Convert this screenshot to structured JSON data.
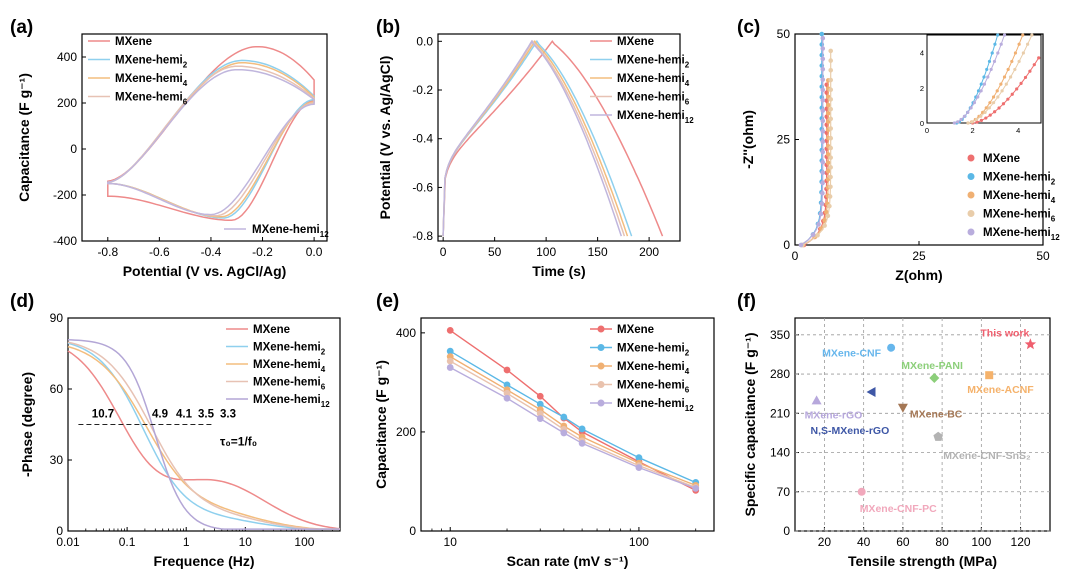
{
  "chart_data": [
    {
      "panel": "(a)",
      "type": "line",
      "xlabel": "Potential (V vs. AgCl/Ag)",
      "ylabel": "Capacitance (F g⁻¹)",
      "xlim": [
        -0.9,
        0.05
      ],
      "ylim": [
        -400,
        500
      ],
      "xticks": [
        -0.8,
        -0.6,
        -0.4,
        -0.2,
        0.0
      ],
      "yticks": [
        -400,
        -200,
        0,
        200,
        400
      ],
      "xtick_labels": [
        "-0.8",
        "-0.6",
        "-0.4",
        "-0.2",
        "0.0"
      ],
      "ytick_labels": [
        "-400",
        "-200",
        "0",
        "200",
        "400"
      ],
      "legend": {
        "position": "top-left",
        "inline_label": "MXene-hemi",
        "inline_sub": "12"
      },
      "series": [
        {
          "name": "MXene",
          "sub": "",
          "color": "#ee8a8a",
          "top_peak": [
            -0.22,
            445
          ],
          "bottom_peak": [
            -0.32,
            -310
          ],
          "upper_left": -140,
          "lower_left": -205,
          "right_top": 300,
          "right_bottom": 210
        },
        {
          "name": "MXene-hemi",
          "sub": "2",
          "color": "#8fd0ee",
          "top_peak": [
            -0.28,
            385
          ],
          "bottom_peak": [
            -0.35,
            -300
          ],
          "upper_left": -145,
          "lower_left": -150,
          "right_top": 230,
          "right_bottom": 215
        },
        {
          "name": "MXene-hemi",
          "sub": "4",
          "color": "#f3bd7e",
          "top_peak": [
            -0.28,
            375
          ],
          "bottom_peak": [
            -0.36,
            -295
          ],
          "upper_left": -145,
          "lower_left": -150,
          "right_top": 225,
          "right_bottom": 205
        },
        {
          "name": "MXene-hemi",
          "sub": "6",
          "color": "#e7c2b4",
          "top_peak": [
            -0.3,
            360
          ],
          "bottom_peak": [
            -0.38,
            -290
          ],
          "upper_left": -145,
          "lower_left": -150,
          "right_top": 220,
          "right_bottom": 200
        },
        {
          "name": "MXene-hemi",
          "sub": "12",
          "color": "#c0b6dd",
          "top_peak": [
            -0.3,
            345
          ],
          "bottom_peak": [
            -0.4,
            -285
          ],
          "upper_left": -145,
          "lower_left": -150,
          "right_top": 215,
          "right_bottom": 195
        }
      ]
    },
    {
      "panel": "(b)",
      "type": "line",
      "xlabel": "Time (s)",
      "ylabel": "Potential (V vs. Ag/AgCl)",
      "xlim": [
        -5,
        230
      ],
      "ylim": [
        -0.82,
        0.03
      ],
      "xticks": [
        0,
        50,
        100,
        150,
        200
      ],
      "yticks": [
        0.0,
        -0.2,
        -0.4,
        -0.6,
        -0.8
      ],
      "xtick_labels": [
        "0",
        "50",
        "100",
        "150",
        "200"
      ],
      "ytick_labels": [
        "0.0",
        "-0.2",
        "-0.4",
        "-0.6",
        "-0.8"
      ],
      "legend": {
        "position": "top-right"
      },
      "series": [
        {
          "name": "MXene",
          "sub": "",
          "color": "#ee8a8a",
          "peak_time": 106,
          "end_time": 213
        },
        {
          "name": "MXene-hemi",
          "sub": "2",
          "color": "#8fd0ee",
          "peak_time": 91,
          "end_time": 183
        },
        {
          "name": "MXene-hemi",
          "sub": "4",
          "color": "#f3bd7e",
          "peak_time": 89,
          "end_time": 179
        },
        {
          "name": "MXene-hemi",
          "sub": "6",
          "color": "#e7c2b4",
          "peak_time": 87,
          "end_time": 176
        },
        {
          "name": "MXene-hemi",
          "sub": "12",
          "color": "#c0b6dd",
          "peak_time": 86,
          "end_time": 173
        }
      ]
    },
    {
      "panel": "(c)",
      "type": "scatter",
      "xlabel": "Z(ohm)",
      "ylabel": "-Z''(ohm)",
      "xlim": [
        0,
        50
      ],
      "ylim": [
        0,
        50
      ],
      "xticks": [
        0,
        25,
        50
      ],
      "yticks": [
        0,
        25,
        50
      ],
      "xtick_labels": [
        "0",
        "25",
        "50"
      ],
      "ytick_labels": [
        "0",
        "25",
        "50"
      ],
      "legend": {
        "position": "bottom-right"
      },
      "series": [
        {
          "name": "MXene",
          "sub": "",
          "color": "#ee6f6f",
          "x0": 1.8,
          "xv": 6.4,
          "ymax": 38
        },
        {
          "name": "MXene-hemi",
          "sub": "2",
          "color": "#5bb8e6",
          "x0": 1.3,
          "xv": 5.4,
          "ymax": 50
        },
        {
          "name": "MXene-hemi",
          "sub": "4",
          "color": "#f0b073",
          "x0": 1.6,
          "xv": 6.7,
          "ymax": 39
        },
        {
          "name": "MXene-hemi",
          "sub": "6",
          "color": "#e9cdaa",
          "x0": 1.5,
          "xv": 7.2,
          "ymax": 46
        },
        {
          "name": "MXene-hemi",
          "sub": "12",
          "color": "#b9addd",
          "x0": 1.2,
          "xv": 5.6,
          "ymax": 49
        }
      ],
      "inset": {
        "xlim": [
          0,
          5
        ],
        "ylim": [
          0,
          5
        ],
        "xticks": [
          0,
          2,
          4
        ],
        "yticks": [
          0,
          2,
          4
        ],
        "xtick_labels": [
          "0",
          "2",
          "4"
        ],
        "ytick_labels": [
          "0",
          "2",
          "4"
        ],
        "curves": [
          {
            "color": "#ee6f6f",
            "x0": 2.0,
            "x_end": 4.9,
            "y_end": 3.7
          },
          {
            "color": "#5bb8e6",
            "x0": 1.3,
            "x_end": 3.1,
            "y_end": 5.0
          },
          {
            "color": "#f0b073",
            "x0": 1.8,
            "x_end": 4.2,
            "y_end": 5.0
          },
          {
            "color": "#e9cdaa",
            "x0": 1.8,
            "x_end": 4.6,
            "y_end": 5.0
          },
          {
            "color": "#b9addd",
            "x0": 1.2,
            "x_end": 3.4,
            "y_end": 5.0
          }
        ]
      }
    },
    {
      "panel": "(d)",
      "type": "line",
      "xlabel": "Frequence (Hz)",
      "ylabel": "-Phase (degree)",
      "xscale": "log",
      "xlim": [
        0.01,
        400
      ],
      "ylim": [
        0,
        90
      ],
      "xticks": [
        0.01,
        0.1,
        1,
        10,
        100
      ],
      "yticks": [
        0,
        30,
        60,
        90
      ],
      "xtick_labels": [
        "0.01",
        "0.1",
        "1",
        "10",
        "100"
      ],
      "ytick_labels": [
        "0",
        "30",
        "60",
        "90"
      ],
      "reference_line": {
        "y": 45,
        "x_from": 0.015,
        "x_to": 3
      },
      "annotations": [
        "10.7",
        "4.9",
        "4.1",
        "3.5",
        "3.3"
      ],
      "equation": "τ₀=1/f₀",
      "legend": {
        "position": "top-right"
      },
      "series": [
        {
          "name": "MXene",
          "sub": "",
          "color": "#ee8a8a",
          "y0": 83,
          "f0": 0.093,
          "width": 0.9,
          "tail": 20
        },
        {
          "name": "MXene-hemi",
          "sub": "2",
          "color": "#8fd0ee",
          "y0": 82,
          "f0": 0.2,
          "width": 0.85,
          "tail": 4
        },
        {
          "name": "MXene-hemi",
          "sub": "4",
          "color": "#f3bd7e",
          "y0": 81,
          "f0": 0.24,
          "width": 0.95,
          "tail": 6
        },
        {
          "name": "MXene-hemi",
          "sub": "6",
          "color": "#e7c2b4",
          "y0": 82,
          "f0": 0.28,
          "width": 0.9,
          "tail": 5
        },
        {
          "name": "MXene-hemi",
          "sub": "12",
          "color": "#b3a6d6",
          "y0": 81,
          "f0": 0.3,
          "width": 0.55,
          "tail": 0
        }
      ]
    },
    {
      "panel": "(e)",
      "type": "line",
      "xlabel": "Scan rate (mV s⁻¹)",
      "ylabel": "Capacitance (F g⁻¹)",
      "xscale": "log",
      "xlim": [
        7,
        250
      ],
      "ylim": [
        0,
        430
      ],
      "xticks": [
        10,
        100
      ],
      "yticks": [
        0,
        200,
        400
      ],
      "xtick_labels": [
        "10",
        "100"
      ],
      "ytick_labels": [
        "0",
        "200",
        "400"
      ],
      "legend": {
        "position": "top-right"
      },
      "x": [
        10,
        20,
        30,
        40,
        50,
        100,
        200
      ],
      "series": [
        {
          "name": "MXene",
          "sub": "",
          "color": "#ee6f6f",
          "values": [
            405,
            325,
            272,
            228,
            200,
            140,
            82
          ]
        },
        {
          "name": "MXene-hemi",
          "sub": "2",
          "color": "#5bb8e6",
          "values": [
            363,
            295,
            256,
            230,
            206,
            148,
            98
          ]
        },
        {
          "name": "MXene-hemi",
          "sub": "4",
          "color": "#f0b073",
          "values": [
            352,
            285,
            245,
            212,
            190,
            137,
            92
          ]
        },
        {
          "name": "MXene-hemi",
          "sub": "6",
          "color": "#e9c2ad",
          "values": [
            343,
            278,
            237,
            205,
            182,
            132,
            88
          ]
        },
        {
          "name": "MXene-hemi",
          "sub": "12",
          "color": "#b9addd",
          "values": [
            330,
            268,
            227,
            198,
            177,
            128,
            86
          ]
        }
      ]
    },
    {
      "panel": "(f)",
      "type": "scatter",
      "xlabel": "Tensile strength (MPa)",
      "ylabel": "Specific capacitance (F g⁻¹)",
      "xlim": [
        5,
        135
      ],
      "ylim": [
        0,
        380
      ],
      "xticks": [
        20,
        40,
        60,
        80,
        100,
        120
      ],
      "yticks": [
        0,
        70,
        140,
        210,
        280,
        350
      ],
      "xtick_labels": [
        "20",
        "40",
        "60",
        "80",
        "100",
        "120"
      ],
      "ytick_labels": [
        "0",
        "70",
        "140",
        "210",
        "280",
        "350"
      ],
      "grid": true,
      "points": [
        {
          "label": "This work",
          "x": 125,
          "y": 333,
          "color": "#ef5f6e",
          "marker": "star"
        },
        {
          "label": "MXene-CNF",
          "x": 54,
          "y": 327,
          "color": "#66b6ec",
          "marker": "circle"
        },
        {
          "label": "MXene-PANI",
          "x": 76,
          "y": 273,
          "color": "#8ccf7a",
          "marker": "diamond"
        },
        {
          "label": "MXene-ACNF",
          "x": 104,
          "y": 278,
          "color": "#f5b26b",
          "marker": "square"
        },
        {
          "label": "MXene-rGO",
          "x": 16,
          "y": 233,
          "color": "#b7a8dc",
          "marker": "triangle-up"
        },
        {
          "label": "N,S-MXene-rGO",
          "x": 44,
          "y": 248,
          "color": "#3e57a6",
          "marker": "triangle-left"
        },
        {
          "label": "MXene-BC",
          "x": 60,
          "y": 220,
          "color": "#a47755",
          "marker": "triangle-down"
        },
        {
          "label": "MXene-CNF-SnS₂",
          "x": 78,
          "y": 168,
          "color": "#b3b3b3",
          "marker": "pentagon"
        },
        {
          "label": "MXene-CNF-PC",
          "x": 39,
          "y": 70,
          "color": "#f1a8bc",
          "marker": "circle"
        }
      ]
    }
  ],
  "labels": {
    "a": "(a)",
    "b": "(b)",
    "c": "(c)",
    "d": "(d)",
    "e": "(e)",
    "f": "(f)"
  }
}
